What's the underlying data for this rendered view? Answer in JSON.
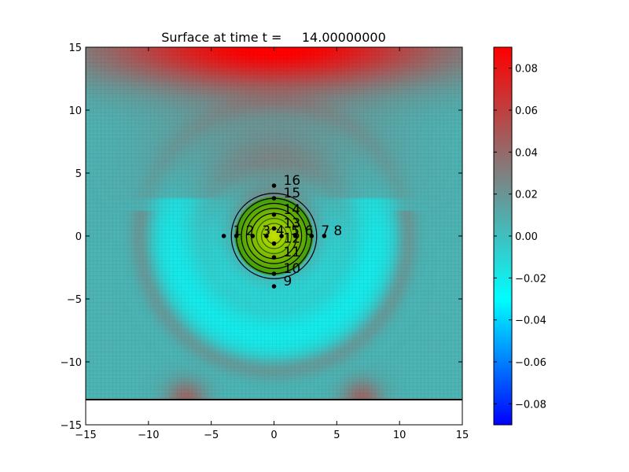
{
  "chart_data": {
    "type": "heatmap",
    "title": "Surface at time t =     14.00000000",
    "xlim": [
      -15,
      15
    ],
    "ylim": [
      -15,
      15
    ],
    "xticks": [
      -15,
      -10,
      -5,
      0,
      5,
      10,
      15
    ],
    "yticks": [
      -15,
      -10,
      -5,
      0,
      5,
      10,
      15
    ],
    "xtick_labels": [
      "−15",
      "−10",
      "−5",
      "0",
      "5",
      "10",
      "15"
    ],
    "ytick_labels": [
      "−15",
      "−10",
      "−5",
      "0",
      "5",
      "10",
      "15"
    ],
    "domain_bottom_y": -13,
    "grid": true,
    "colormap": {
      "name": "blue-cyan-gray-red",
      "stops": [
        "#0000ff",
        "#00ffff",
        "#808080",
        "#ff0000"
      ],
      "range": [
        -0.09,
        0.09
      ]
    },
    "colorbar": {
      "ticks": [
        0.08,
        0.06,
        0.04,
        0.02,
        0.0,
        -0.02,
        -0.04,
        -0.06,
        -0.08
      ],
      "tick_labels": [
        "0.08",
        "0.06",
        "0.04",
        "0.02",
        "0.00",
        "−0.02",
        "−0.04",
        "−0.06",
        "−0.08"
      ]
    },
    "field_features": [
      {
        "kind": "maximum",
        "x": 0,
        "y": 15,
        "value": 0.09
      },
      {
        "kind": "positive_bump",
        "x": 0,
        "y": 6,
        "value": 0.035
      },
      {
        "kind": "negative_trough",
        "x": 0,
        "y": -7,
        "value": -0.03
      },
      {
        "kind": "positive_spot",
        "x": -7,
        "y": -13,
        "value": 0.04
      },
      {
        "kind": "positive_spot",
        "x": 7,
        "y": -13,
        "value": 0.04
      }
    ],
    "contours": {
      "center": [
        0,
        0
      ],
      "radii": [
        0.6,
        1.0,
        1.4,
        1.8,
        2.2,
        2.6,
        3.0,
        3.4
      ],
      "fill_color": "#66b000",
      "line_color": "#000000"
    },
    "gauges": [
      {
        "label": "1",
        "x": -4,
        "y": 0
      },
      {
        "label": "2",
        "x": -3,
        "y": 0
      },
      {
        "label": "3",
        "x": -1.7,
        "y": 0
      },
      {
        "label": "4",
        "x": -0.6,
        "y": 0
      },
      {
        "label": "5",
        "x": 0.6,
        "y": 0
      },
      {
        "label": "6",
        "x": 1.7,
        "y": 0
      },
      {
        "label": "7",
        "x": 3,
        "y": 0
      },
      {
        "label": "8",
        "x": 4,
        "y": 0
      },
      {
        "label": "9",
        "x": 0,
        "y": -4
      },
      {
        "label": "10",
        "x": 0,
        "y": -3
      },
      {
        "label": "11",
        "x": 0,
        "y": -1.7
      },
      {
        "label": "12",
        "x": 0,
        "y": -0.6
      },
      {
        "label": "13",
        "x": 0,
        "y": 0.6
      },
      {
        "label": "14",
        "x": 0,
        "y": 1.7
      },
      {
        "label": "15",
        "x": 0,
        "y": 3
      },
      {
        "label": "16",
        "x": 0,
        "y": 4
      }
    ]
  }
}
